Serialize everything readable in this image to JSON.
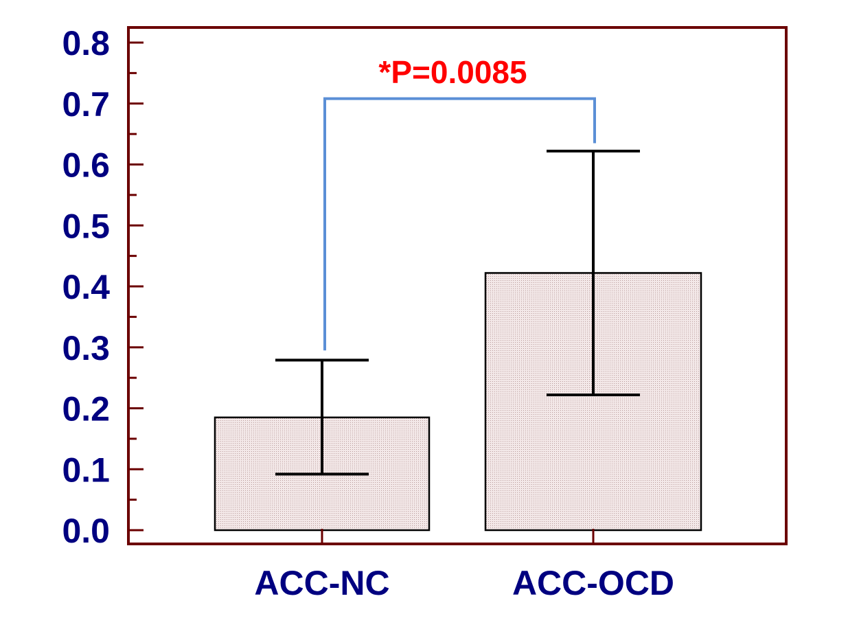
{
  "chart_data": {
    "type": "bar",
    "categories": [
      "ACC-NC",
      "ACC-OCD"
    ],
    "values": [
      0.185,
      0.422
    ],
    "error_bars": [
      {
        "low": 0.092,
        "high": 0.279
      },
      {
        "low": 0.222,
        "high": 0.622
      }
    ],
    "yticks": [
      "0.0",
      "0.1",
      "0.2",
      "0.3",
      "0.4",
      "0.5",
      "0.6",
      "0.7",
      "0.8"
    ],
    "ylim": [
      -0.02,
      0.83
    ],
    "title": "",
    "xlabel": "",
    "ylabel": "",
    "grid": false,
    "significance": {
      "label": "*P=0.0085",
      "from": 0,
      "to": 1,
      "bracket_y": 0.708,
      "left_end": 0.295,
      "right_end": 0.635
    },
    "colors": {
      "frame": "#6b0000",
      "tick_label": "#000080",
      "bar_fill": "#f2e6e6",
      "bar_edge": "#000000",
      "error_bar": "#000000",
      "bracket": "#5b8fd6",
      "annotation": "#ff0000"
    }
  }
}
